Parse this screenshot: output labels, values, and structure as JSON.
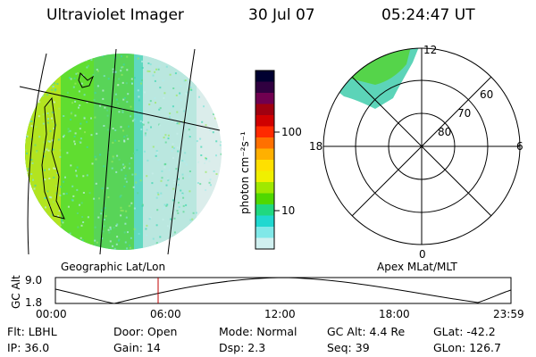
{
  "header": {
    "title": "Ultraviolet Imager",
    "date": "30 Jul 07",
    "time": "05:24:47 UT"
  },
  "geo_panel": {
    "label": "Geographic Lat/Lon"
  },
  "apex_panel": {
    "label": "Apex MLat/MLT",
    "mlt_labels": {
      "top": "12",
      "bottom": "0",
      "left": "18",
      "right": "6"
    },
    "lat_labels": [
      "60",
      "70",
      "80"
    ]
  },
  "colorbar": {
    "unit_label": "photon cm⁻²s⁻¹",
    "tick_labels": [
      "100",
      "10"
    ],
    "colors": [
      "#000030",
      "#300040",
      "#700050",
      "#a00010",
      "#d00000",
      "#ff2a00",
      "#ff7000",
      "#ffb000",
      "#ffe000",
      "#f0f000",
      "#a0e800",
      "#50d800",
      "#20d880",
      "#20d8d0",
      "#80e8e8",
      "#d0f0f0"
    ]
  },
  "altitude_plot": {
    "ylabel": "GC Alt",
    "yticks": [
      "9.0",
      "1.8"
    ],
    "xticks": [
      "00:00",
      "06:00",
      "12:00",
      "18:00",
      "23:59"
    ],
    "current_time_hours": 5.41
  },
  "info": {
    "row1": [
      {
        "key": "Flt:",
        "val": "LBHL"
      },
      {
        "key": "Door:",
        "val": "Open"
      },
      {
        "key": "Mode:",
        "val": "Normal"
      },
      {
        "key": "GC Alt:",
        "val": "4.4 Re"
      },
      {
        "key": "GLat:",
        "val": "-42.2"
      }
    ],
    "row2": [
      {
        "key": "IP:",
        "val": "36.0"
      },
      {
        "key": "Gain:",
        "val": "14"
      },
      {
        "key": "Dsp:",
        "val": "2.3"
      },
      {
        "key": "Seq:",
        "val": "39"
      },
      {
        "key": "GLon:",
        "val": "126.7"
      }
    ]
  }
}
